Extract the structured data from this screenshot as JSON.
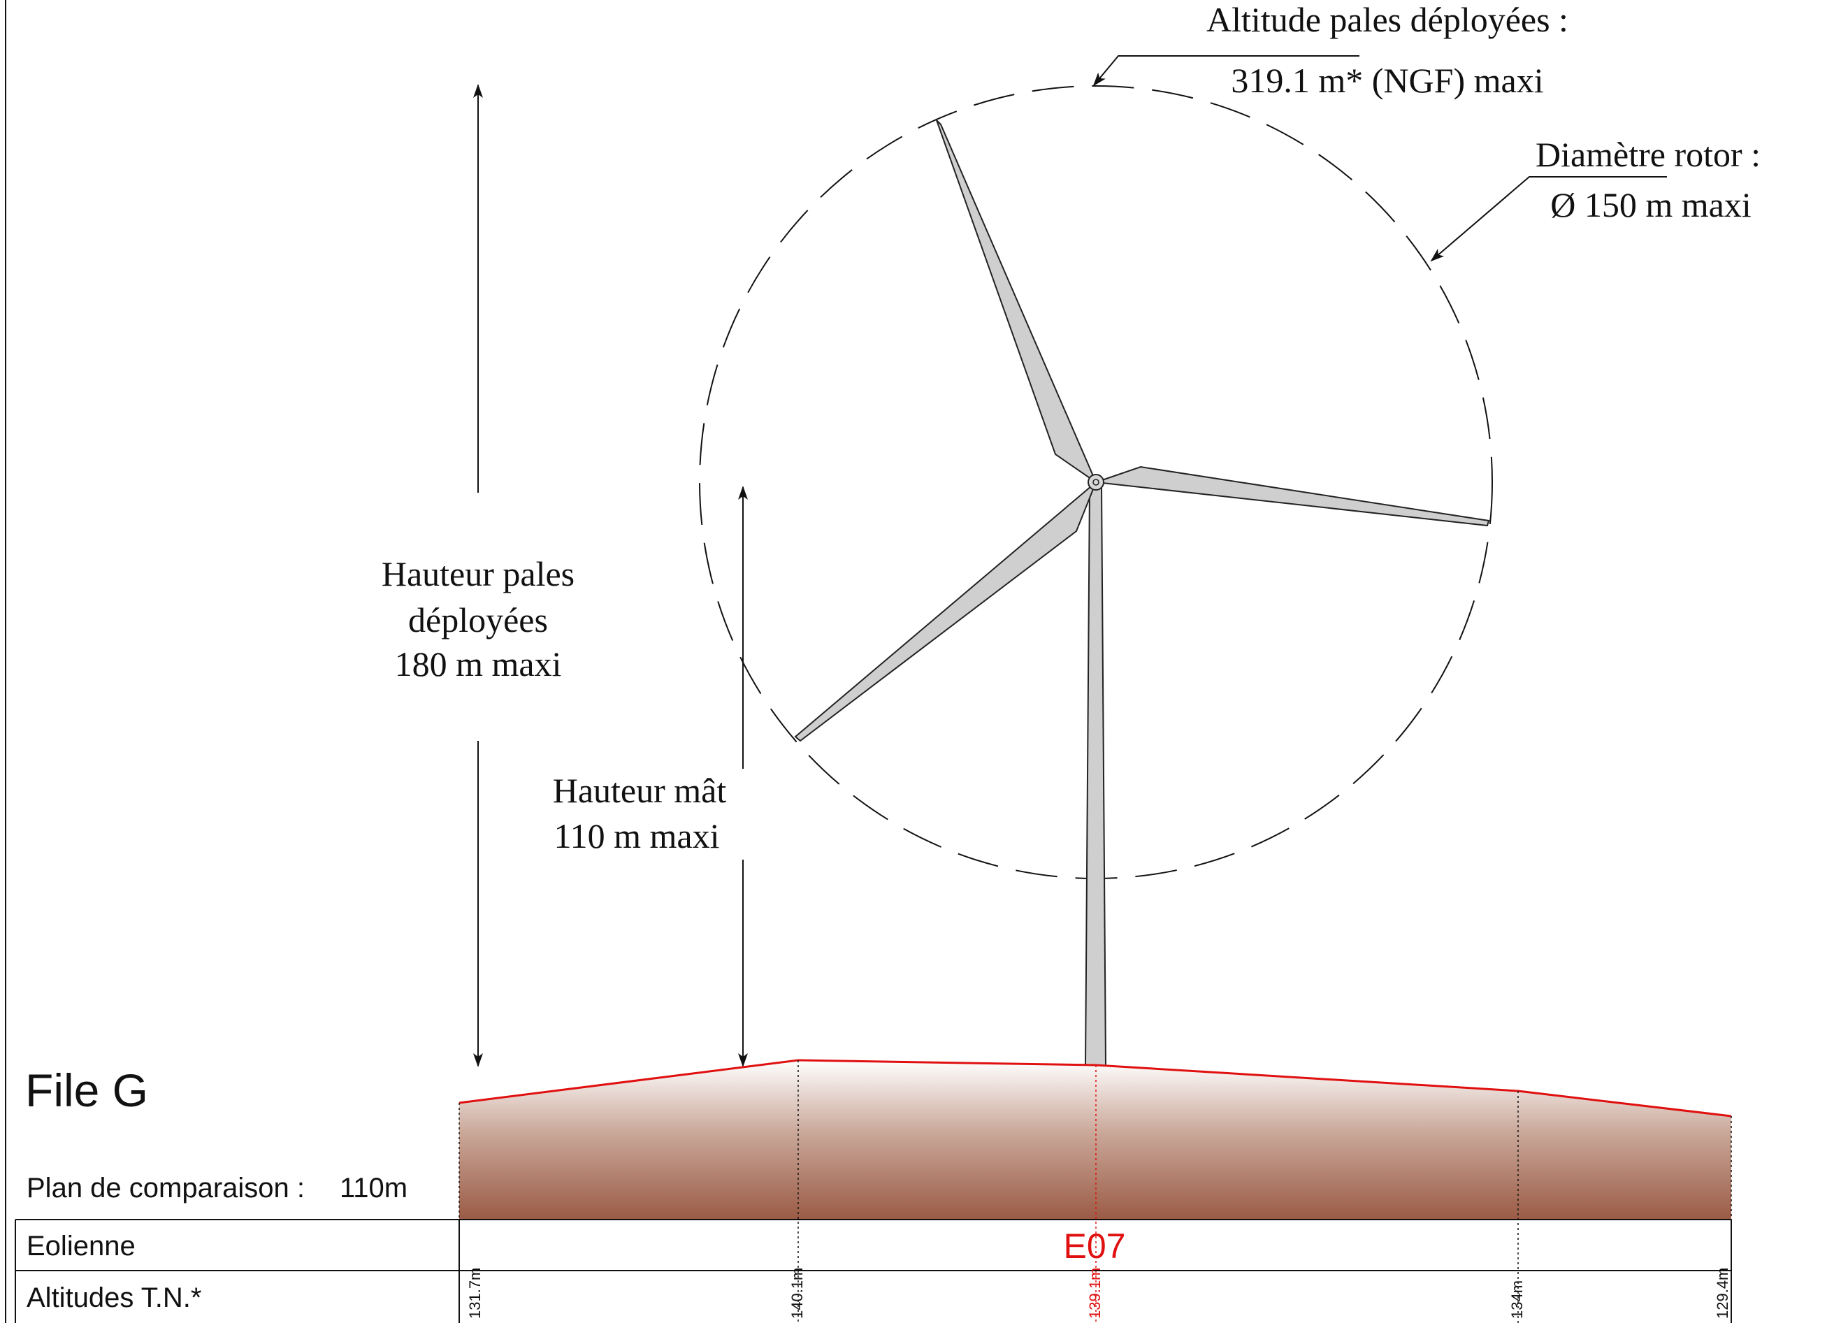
{
  "title": "File G",
  "plan": {
    "label": "Plan de comparaison :",
    "value": "110m"
  },
  "annotations": {
    "altitude_line1": "Altitude pales déployées :",
    "altitude_line2": "319.1 m* (NGF) maxi",
    "diameter_line1": "Diamètre rotor :",
    "diameter_line2": "Ø 150 m maxi",
    "blade_height_line1": "Hauteur pales",
    "blade_height_line2": "déployées",
    "blade_height_line3": "180 m maxi",
    "mast_height_line1": "Hauteur mât",
    "mast_height_line2": "110 m maxi"
  },
  "table": {
    "row1_label": "Eolienne",
    "row2_label": "Altitudes T.N.*",
    "turbine_id": "E07"
  },
  "terrain_points": [
    {
      "altitude_label": "131.7m",
      "highlight": false
    },
    {
      "altitude_label": "140.1m",
      "highlight": false
    },
    {
      "altitude_label": "139.1m",
      "highlight": true
    },
    {
      "altitude_label": "134m",
      "highlight": false
    },
    {
      "altitude_label": "129.4m",
      "highlight": false
    }
  ],
  "colors": {
    "terrain_line": "#e01010",
    "terrain_top": "#ffffff",
    "terrain_bottom": "#9b5b45",
    "turbine_fill": "#cfcfcf",
    "highlight": "#e01010"
  }
}
